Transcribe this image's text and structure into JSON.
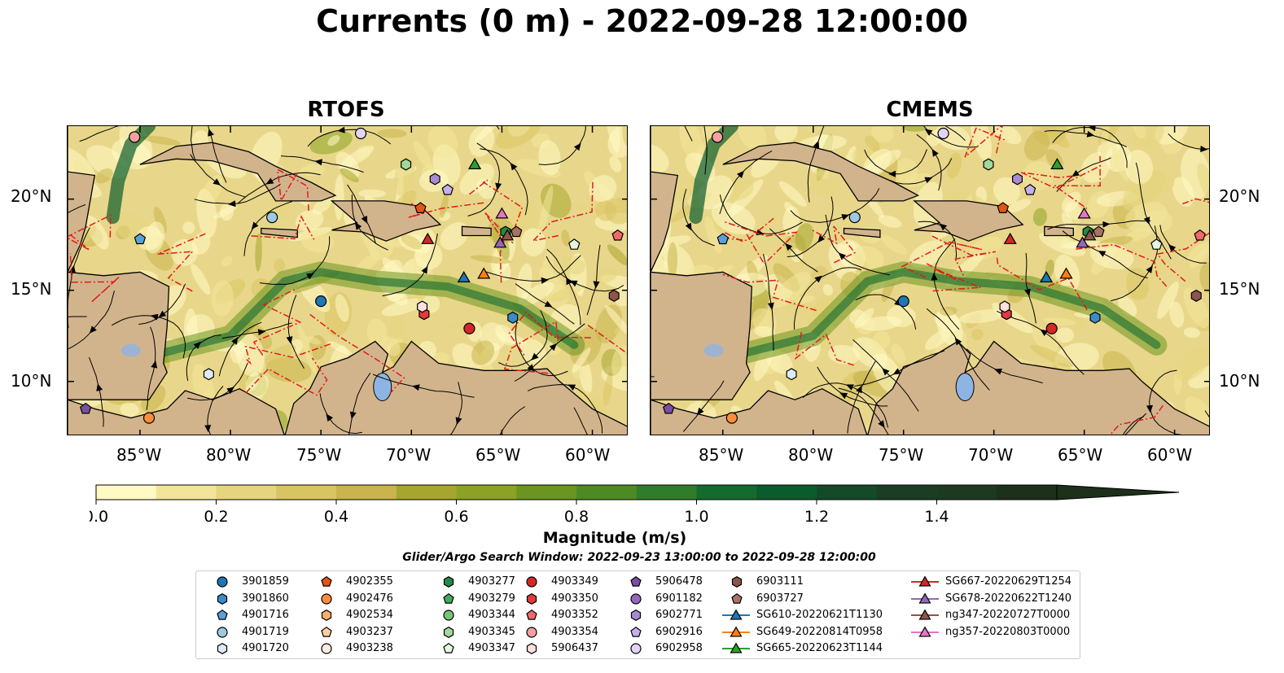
{
  "title": "Currents (0 m) - 2022-09-28 12:00:00",
  "panels": [
    {
      "title": "RTOFS"
    },
    {
      "title": "CMEMS"
    }
  ],
  "lon_ticks": [
    "85°W",
    "80°W",
    "75°W",
    "70°W",
    "65°W",
    "60°W"
  ],
  "lat_ticks": [
    "20°N",
    "15°N",
    "10°N"
  ],
  "colors": {
    "land": "#d2b48c",
    "lake": "#8eb4e3",
    "eez": "#e31a1c",
    "streamline": "#000000",
    "colormap": [
      "#fff9c4",
      "#f2e59a",
      "#e6d57e",
      "#d9c462",
      "#c9b44d",
      "#a6a62e",
      "#8ca224",
      "#6b9521",
      "#4d8a24",
      "#2f7d2a",
      "#146b2e",
      "#0b5c2c",
      "#144a28",
      "#1b3d24",
      "#1d3a20",
      "#1d301a"
    ]
  },
  "chart_data": {
    "type": "heatmap",
    "colorbar": {
      "label": "Magnitude (m/s)",
      "ticks": [
        "0.0",
        "0.2",
        "0.4",
        "0.6",
        "0.8",
        "1.0",
        "1.2",
        "1.4"
      ],
      "range": [
        0,
        1.6
      ],
      "extend": "max"
    },
    "xlim": [
      -89,
      -58
    ],
    "ylim": [
      7,
      24
    ],
    "search_window": "Glider/Argo Search Window: 2022-09-23 13:00:00 to 2022-09-28 12:00:00",
    "legend": [
      {
        "label": "3901859",
        "marker": "circle",
        "color": "#1f77b4"
      },
      {
        "label": "3901860",
        "marker": "hexagon",
        "color": "#3a8cc8"
      },
      {
        "label": "4901716",
        "marker": "pentagon",
        "color": "#5aa0d8"
      },
      {
        "label": "4901719",
        "marker": "circle",
        "color": "#9ecae1"
      },
      {
        "label": "4901720",
        "marker": "hexagon",
        "color": "#deebf7"
      },
      {
        "label": "4902355",
        "marker": "pentagon",
        "color": "#e6550d"
      },
      {
        "label": "4902476",
        "marker": "circle",
        "color": "#fd8d3c"
      },
      {
        "label": "4902534",
        "marker": "hexagon",
        "color": "#fdae6b"
      },
      {
        "label": "4903237",
        "marker": "pentagon",
        "color": "#fdd0a2"
      },
      {
        "label": "4903238",
        "marker": "circle",
        "color": "#feedde"
      },
      {
        "label": "4903277",
        "marker": "hexagon",
        "color": "#238b45"
      },
      {
        "label": "4903279",
        "marker": "pentagon",
        "color": "#41ab5d"
      },
      {
        "label": "4903344",
        "marker": "circle",
        "color": "#74c476"
      },
      {
        "label": "4903345",
        "marker": "hexagon",
        "color": "#a1d99b"
      },
      {
        "label": "4903347",
        "marker": "pentagon",
        "color": "#e5f5e0"
      },
      {
        "label": "4903349",
        "marker": "circle",
        "color": "#d62728"
      },
      {
        "label": "4903350",
        "marker": "hexagon",
        "color": "#e03a3a"
      },
      {
        "label": "4903352",
        "marker": "pentagon",
        "color": "#ef6a6a"
      },
      {
        "label": "4903354",
        "marker": "circle",
        "color": "#f4a0a0"
      },
      {
        "label": "5906437",
        "marker": "hexagon",
        "color": "#fde0e0"
      },
      {
        "label": "5906478",
        "marker": "pentagon",
        "color": "#7b4ea3"
      },
      {
        "label": "6901182",
        "marker": "circle",
        "color": "#9467bd"
      },
      {
        "label": "6902771",
        "marker": "hexagon",
        "color": "#a98bd0"
      },
      {
        "label": "6902916",
        "marker": "pentagon",
        "color": "#c5b0e8"
      },
      {
        "label": "6902958",
        "marker": "circle",
        "color": "#e3d4f7"
      },
      {
        "label": "6903111",
        "marker": "hexagon",
        "color": "#8c564b"
      },
      {
        "label": "6903727",
        "marker": "pentagon",
        "color": "#a87264"
      },
      {
        "label": "SG610-20220621T1130",
        "marker": "triangle-line",
        "color": "#1f77b4"
      },
      {
        "label": "SG649-20220814T0958",
        "marker": "triangle-line",
        "color": "#ff7f0e"
      },
      {
        "label": "SG665-20220623T1144",
        "marker": "triangle-line",
        "color": "#2ca02c"
      },
      {
        "label": "SG667-20220629T1254",
        "marker": "triangle-line",
        "color": "#d62728"
      },
      {
        "label": "SG678-20220622T1240",
        "marker": "triangle-line",
        "color": "#9467bd"
      },
      {
        "label": "ng347-20220727T0000",
        "marker": "triangle-line",
        "color": "#8c564b"
      },
      {
        "label": "ng357-20220803T0000",
        "marker": "triangle-line",
        "color": "#e377c2"
      }
    ],
    "markers": [
      {
        "label": "3901859",
        "lon": -75.0,
        "lat": 14.4
      },
      {
        "label": "3901860",
        "lon": -64.4,
        "lat": 13.5
      },
      {
        "label": "4901716",
        "lon": -85.0,
        "lat": 17.8
      },
      {
        "label": "4901719",
        "lon": -77.7,
        "lat": 19.0
      },
      {
        "label": "4901720",
        "lon": -81.2,
        "lat": 10.4
      },
      {
        "label": "4902355",
        "lon": -69.5,
        "lat": 19.5
      },
      {
        "label": "4902476",
        "lon": -84.5,
        "lat": 8.0
      },
      {
        "label": "4903277",
        "lon": -64.8,
        "lat": 18.2
      },
      {
        "label": "4903345",
        "lon": -70.3,
        "lat": 21.9
      },
      {
        "label": "4903347",
        "lon": -61.0,
        "lat": 17.5
      },
      {
        "label": "4903349",
        "lon": -66.8,
        "lat": 12.9
      },
      {
        "label": "4903350",
        "lon": -69.3,
        "lat": 13.7
      },
      {
        "label": "4903352",
        "lon": -58.6,
        "lat": 18.0
      },
      {
        "label": "4903354",
        "lon": -85.3,
        "lat": 23.4
      },
      {
        "label": "5906437",
        "lon": -69.4,
        "lat": 14.1
      },
      {
        "label": "5906478",
        "lon": -88.0,
        "lat": 8.5
      },
      {
        "label": "6902771",
        "lon": -68.7,
        "lat": 21.1
      },
      {
        "label": "6902916",
        "lon": -68.0,
        "lat": 20.5
      },
      {
        "label": "6902958",
        "lon": -72.8,
        "lat": 23.6
      },
      {
        "label": "6903111",
        "lon": -58.8,
        "lat": 14.7
      },
      {
        "label": "6903727",
        "lon": -64.2,
        "lat": 18.2
      },
      {
        "label": "SG610-20220621T1130",
        "lon": -67.1,
        "lat": 15.7
      },
      {
        "label": "SG649-20220814T0958",
        "lon": -66.0,
        "lat": 15.9
      },
      {
        "label": "SG665-20220623T1144",
        "lon": -66.5,
        "lat": 21.9
      },
      {
        "label": "SG667-20220629T1254",
        "lon": -69.1,
        "lat": 17.8
      },
      {
        "label": "SG678-20220622T1240",
        "lon": -65.1,
        "lat": 17.6
      },
      {
        "label": "ng347-20220727T0000",
        "lon": -64.7,
        "lat": 18.0
      },
      {
        "label": "ng357-20220803T0000",
        "lon": -65.0,
        "lat": 19.2
      }
    ]
  }
}
